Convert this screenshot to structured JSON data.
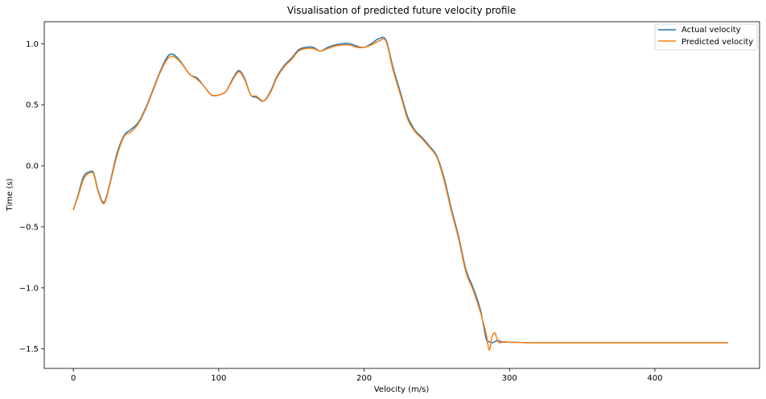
{
  "chart_data": {
    "type": "line",
    "title": "Visualisation of predicted future velocity profile",
    "xlabel": "Velocity (m/s)",
    "ylabel": "Time (s)",
    "xlim": [
      -20,
      472
    ],
    "ylim": [
      -1.66,
      1.18
    ],
    "xticks": [
      0,
      100,
      200,
      300,
      400
    ],
    "yticks": [
      -1.5,
      -1.0,
      -0.5,
      0.0,
      0.5,
      1.0
    ],
    "xtick_labels": [
      "0",
      "100",
      "200",
      "300",
      "400"
    ],
    "ytick_labels": [
      "−1.5",
      "−1.0",
      "−0.5",
      "0.0",
      "0.5",
      "1.0"
    ],
    "grid": false,
    "legend_position": "top-right",
    "series": [
      {
        "name": "Actual velocity",
        "color": "#1f77b4",
        "x": [
          0,
          3,
          7,
          11,
          14,
          17,
          21,
          25,
          30,
          35,
          40,
          45,
          50,
          55,
          60,
          66,
          72,
          80,
          85,
          90,
          95,
          100,
          105,
          110,
          114,
          118,
          122,
          126,
          131,
          136,
          140,
          145,
          150,
          155,
          160,
          165,
          170,
          175,
          180,
          185,
          190,
          195,
          200,
          205,
          210,
          215,
          220,
          225,
          230,
          235,
          240,
          245,
          250,
          255,
          260,
          265,
          270,
          275,
          280,
          284,
          286,
          288,
          290,
          292,
          294,
          296,
          300,
          310,
          320,
          350,
          400,
          450
        ],
        "y": [
          -0.36,
          -0.25,
          -0.09,
          -0.05,
          -0.06,
          -0.2,
          -0.3,
          -0.15,
          0.1,
          0.25,
          0.3,
          0.36,
          0.48,
          0.63,
          0.78,
          0.91,
          0.88,
          0.75,
          0.72,
          0.65,
          0.58,
          0.58,
          0.61,
          0.72,
          0.78,
          0.71,
          0.58,
          0.56,
          0.53,
          0.62,
          0.73,
          0.82,
          0.88,
          0.95,
          0.97,
          0.97,
          0.94,
          0.97,
          0.99,
          1.0,
          1.0,
          0.98,
          0.97,
          1.0,
          1.04,
          1.03,
          0.8,
          0.6,
          0.4,
          0.29,
          0.23,
          0.16,
          0.08,
          -0.1,
          -0.35,
          -0.58,
          -0.85,
          -1.0,
          -1.18,
          -1.42,
          -1.44,
          -1.45,
          -1.44,
          -1.43,
          -1.44,
          -1.445,
          -1.445,
          -1.448,
          -1.45,
          -1.45,
          -1.45,
          -1.45
        ]
      },
      {
        "name": "Predicted velocity",
        "color": "#ff7f0e",
        "x": [
          0,
          3,
          7,
          11,
          14,
          17,
          21,
          25,
          30,
          35,
          40,
          45,
          50,
          55,
          60,
          66,
          72,
          80,
          85,
          90,
          95,
          100,
          105,
          110,
          114,
          118,
          122,
          126,
          131,
          136,
          140,
          145,
          150,
          155,
          160,
          165,
          170,
          175,
          180,
          185,
          190,
          195,
          200,
          205,
          210,
          215,
          220,
          225,
          230,
          235,
          240,
          245,
          250,
          255,
          260,
          265,
          270,
          275,
          280,
          284,
          286,
          288,
          290,
          292,
          294,
          296,
          300,
          310,
          320,
          350,
          400,
          450
        ],
        "y": [
          -0.36,
          -0.26,
          -0.11,
          -0.06,
          -0.07,
          -0.21,
          -0.31,
          -0.16,
          0.08,
          0.24,
          0.28,
          0.35,
          0.47,
          0.62,
          0.77,
          0.89,
          0.87,
          0.75,
          0.71,
          0.65,
          0.58,
          0.58,
          0.61,
          0.71,
          0.77,
          0.7,
          0.58,
          0.57,
          0.53,
          0.61,
          0.72,
          0.81,
          0.87,
          0.94,
          0.96,
          0.96,
          0.94,
          0.96,
          0.98,
          0.99,
          0.99,
          0.97,
          0.97,
          0.99,
          1.02,
          1.02,
          0.78,
          0.58,
          0.38,
          0.28,
          0.22,
          0.15,
          0.07,
          -0.12,
          -0.37,
          -0.6,
          -0.87,
          -1.02,
          -1.2,
          -1.38,
          -1.51,
          -1.4,
          -1.37,
          -1.44,
          -1.45,
          -1.44,
          -1.445,
          -1.448,
          -1.45,
          -1.45,
          -1.45,
          -1.45
        ]
      }
    ]
  }
}
